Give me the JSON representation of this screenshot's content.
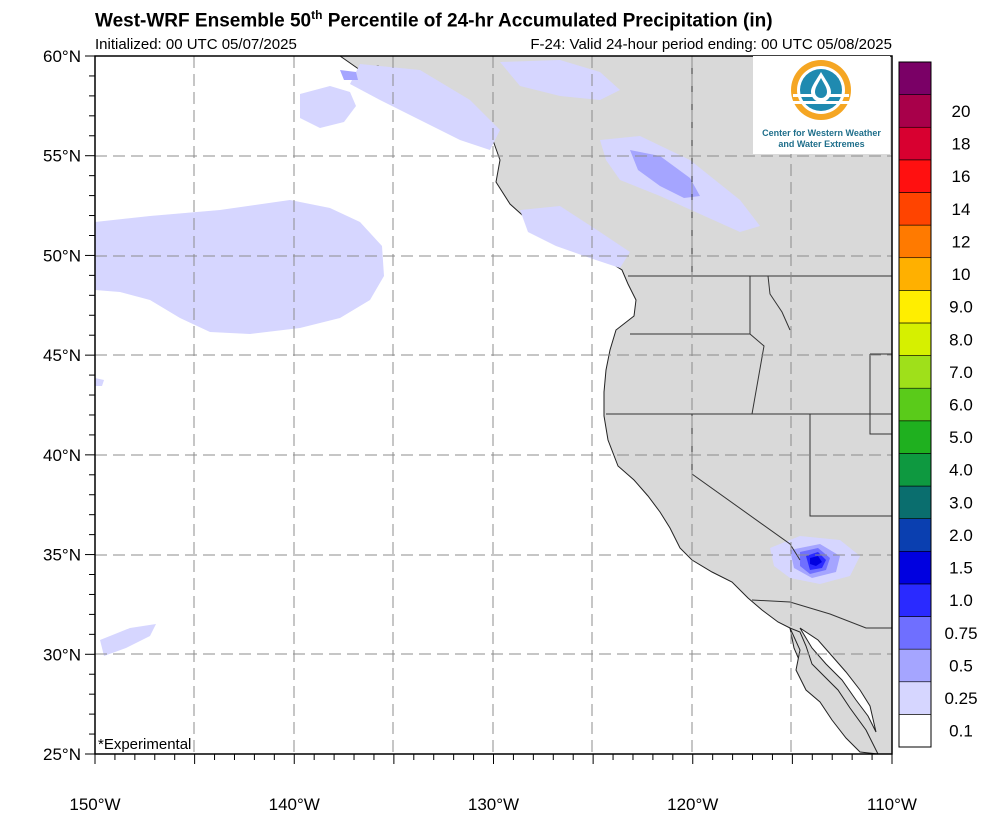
{
  "header": {
    "title_prefix": "West-WRF Ensemble 50",
    "title_sup": "th",
    "title_suffix": " Percentile of  24-hr Accumulated Precipitation (in)",
    "initialized": "Initialized: 00 UTC 05/07/2025",
    "valid": "F-24: Valid 24-hour period ending: 00 UTC 05/08/2025"
  },
  "map": {
    "lon_range": [
      -150,
      -110
    ],
    "lat_range": [
      25,
      60
    ],
    "lat_labels": [
      "60°N",
      "55°N",
      "50°N",
      "45°N",
      "40°N",
      "35°N",
      "30°N",
      "25°N"
    ],
    "lon_labels": [
      "150°W",
      "140°W",
      "130°W",
      "120°W",
      "110°W"
    ],
    "footnote": "*Experimental",
    "land_color": "#d9d9d9",
    "ocean_color": "#ffffff",
    "border_color": "#333333"
  },
  "logo": {
    "line1": "Center for Western Weather",
    "line2": "and Water Extremes",
    "icon": "drop-sun-icon"
  },
  "colorbar": {
    "levels": [
      "0.1",
      "0.25",
      "0.5",
      "0.75",
      "1.0",
      "1.5",
      "2.0",
      "3.0",
      "4.0",
      "5.0",
      "6.0",
      "7.0",
      "8.0",
      "9.0",
      "10",
      "12",
      "14",
      "16",
      "18",
      "20"
    ],
    "colors": [
      "#ffffff",
      "#d6d6ff",
      "#a5a5ff",
      "#6f6fff",
      "#2a2aff",
      "#0000e0",
      "#0a3fb0",
      "#0a6e6e",
      "#0e9940",
      "#1fb01f",
      "#5acb1a",
      "#9fe01a",
      "#d6f000",
      "#ffee00",
      "#ffb000",
      "#ff7a00",
      "#ff4400",
      "#ff1010",
      "#d80030",
      "#a8004a",
      "#7a0066"
    ]
  }
}
